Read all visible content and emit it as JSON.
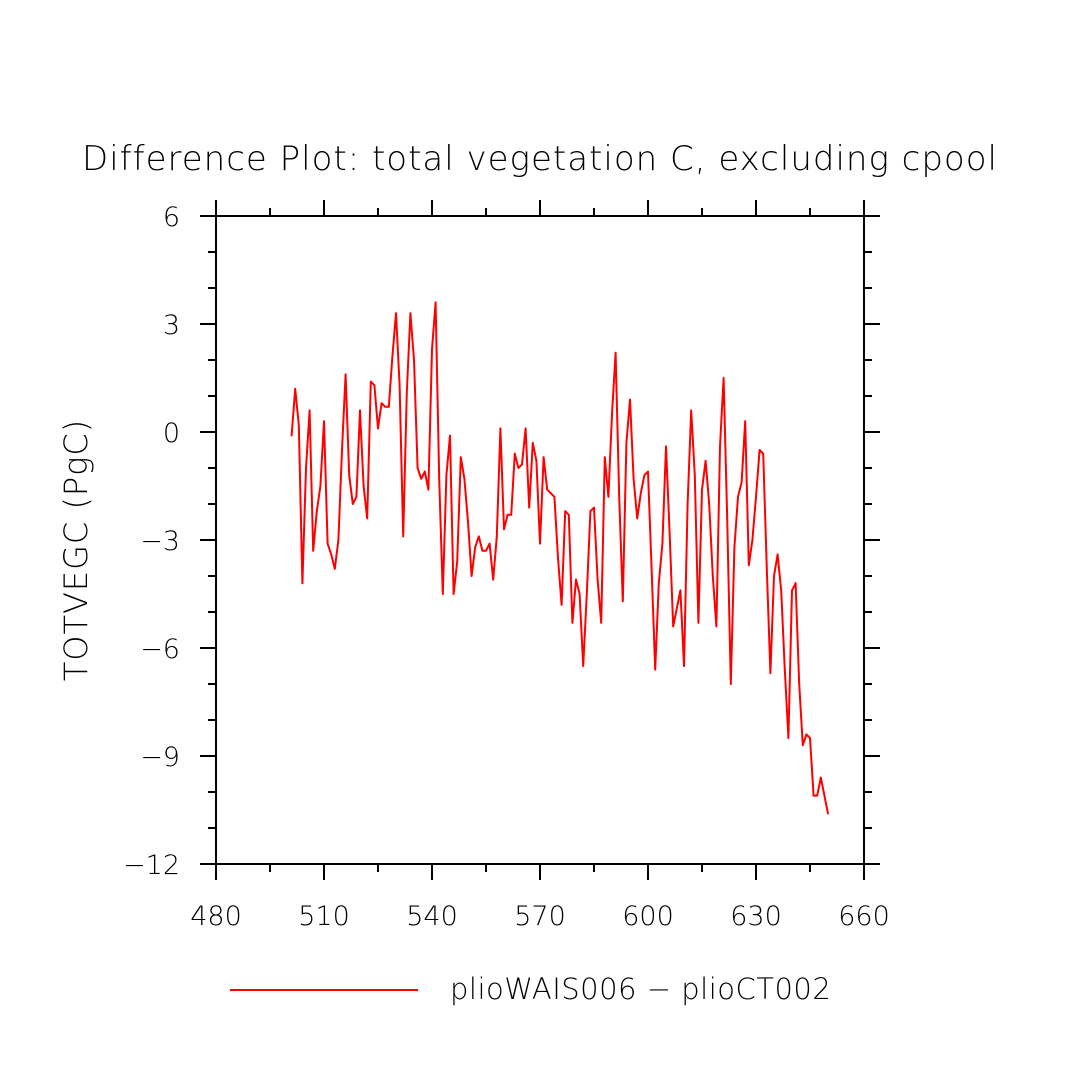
{
  "chart_data": {
    "type": "line",
    "title": "Difference Plot: total vegetation C, excluding cpool",
    "xlabel": "",
    "ylabel": "TOTVEGC  (PgC)",
    "xlim": [
      480,
      660
    ],
    "ylim": [
      -12,
      6
    ],
    "x_ticks": [
      "480",
      "510",
      "540",
      "570",
      "600",
      "630",
      "660"
    ],
    "y_ticks": [
      "6",
      "3",
      "0",
      "−3",
      "−6",
      "−9",
      "−12"
    ],
    "legend_position": "bottom",
    "grid": false,
    "series": [
      {
        "name": "plioWAIS006 − plioCT002",
        "color": "#ff0000",
        "x": [
          501,
          502,
          503,
          504,
          505,
          506,
          507,
          508,
          509,
          510,
          511,
          512,
          513,
          514,
          515,
          516,
          517,
          518,
          519,
          520,
          521,
          522,
          523,
          524,
          525,
          526,
          527,
          528,
          529,
          530,
          531,
          532,
          533,
          534,
          535,
          536,
          537,
          538,
          539,
          540,
          541,
          542,
          543,
          544,
          545,
          546,
          547,
          548,
          549,
          550,
          551,
          552,
          553,
          554,
          555,
          556,
          557,
          558,
          559,
          560,
          561,
          562,
          563,
          564,
          565,
          566,
          567,
          568,
          569,
          570,
          571,
          572,
          573,
          574,
          575,
          576,
          577,
          578,
          579,
          580,
          581,
          582,
          583,
          584,
          585,
          586,
          587,
          588,
          589,
          590,
          591,
          592,
          593,
          594,
          595,
          596,
          597,
          598,
          599,
          600,
          601,
          602,
          603,
          604,
          605,
          606,
          607,
          608,
          609,
          610,
          611,
          612,
          613,
          614,
          615,
          616,
          617,
          618,
          619,
          620,
          621,
          622,
          623,
          624,
          625,
          626,
          627,
          628,
          629,
          630,
          631,
          632,
          633,
          634,
          635,
          636,
          637,
          638,
          639,
          640,
          641,
          642,
          643,
          644,
          645,
          646,
          647,
          648,
          649,
          650
        ],
        "y": [
          -0.1,
          1.2,
          0.2,
          -4.2,
          -1.0,
          0.6,
          -3.3,
          -2.2,
          -1.5,
          0.3,
          -3.1,
          -3.4,
          -3.8,
          -3.0,
          -0.5,
          1.6,
          -1.2,
          -2.0,
          -1.8,
          0.6,
          -1.5,
          -2.4,
          1.4,
          1.3,
          0.1,
          0.8,
          0.7,
          0.7,
          2.1,
          3.3,
          1.3,
          -2.9,
          1.1,
          3.3,
          2.0,
          -1.0,
          -1.3,
          -1.1,
          -1.6,
          2.3,
          3.6,
          -1.3,
          -4.5,
          -1.2,
          -0.1,
          -4.5,
          -3.6,
          -0.7,
          -1.3,
          -2.5,
          -4.0,
          -3.2,
          -2.9,
          -3.3,
          -3.3,
          -3.1,
          -4.1,
          -2.9,
          0.1,
          -2.7,
          -2.3,
          -2.3,
          -0.6,
          -1.0,
          -0.9,
          0.1,
          -2.1,
          -0.3,
          -0.8,
          -3.1,
          -0.7,
          -1.6,
          -1.7,
          -1.8,
          -3.5,
          -4.8,
          -2.2,
          -2.3,
          -5.3,
          -4.1,
          -4.5,
          -6.5,
          -4.5,
          -2.2,
          -2.1,
          -4.1,
          -5.3,
          -0.7,
          -1.8,
          0.5,
          2.2,
          -1.8,
          -4.7,
          -0.3,
          0.9,
          -1.3,
          -2.4,
          -1.7,
          -1.2,
          -1.1,
          -3.8,
          -6.6,
          -4.2,
          -3.1,
          -0.4,
          -2.8,
          -5.4,
          -4.9,
          -4.4,
          -6.5,
          -2.0,
          0.6,
          -1.2,
          -5.3,
          -1.6,
          -0.8,
          -2.0,
          -4.0,
          -5.4,
          -0.4,
          1.5,
          -2.4,
          -7.0,
          -3.2,
          -1.8,
          -1.4,
          0.3,
          -3.7,
          -3.0,
          -1.8,
          -0.5,
          -0.6,
          -3.8,
          -6.7,
          -4.0,
          -3.4,
          -4.4,
          -6.6,
          -8.5,
          -4.4,
          -4.2,
          -7.0,
          -8.7,
          -8.4,
          -8.5,
          -10.1,
          -10.1,
          -9.6,
          -10.1,
          -10.6
        ]
      }
    ]
  }
}
